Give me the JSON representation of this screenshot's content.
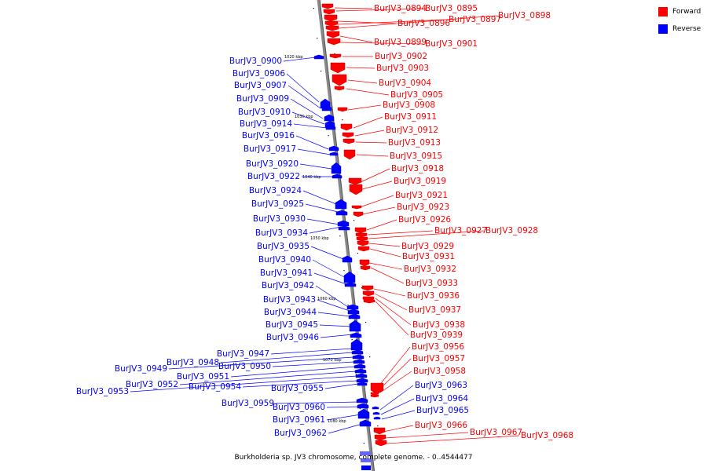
{
  "colors": {
    "forward": "#ff0000",
    "reverse": "#0000ff",
    "backbone": "#888888",
    "tick": "#000000"
  },
  "legend": [
    {
      "label": "Forward",
      "color": "#ff0000"
    },
    {
      "label": "Reverse",
      "color": "#0000ff"
    }
  ],
  "caption": "Burkholderia sp. JV3 chromosome, complete genome. - 0..4544477",
  "scale_labels": [
    "1020 kbp",
    "1030 kbp",
    "1040 kbp",
    "1050 kbp",
    "1060 kbp",
    "1070 kbp",
    "1080 kbp"
  ],
  "genes": [
    {
      "id": "BurJV3_0894",
      "strand": "forward"
    },
    {
      "id": "BurJV3_0895",
      "strand": "forward"
    },
    {
      "id": "BurJV3_0896",
      "strand": "forward"
    },
    {
      "id": "BurJV3_0897",
      "strand": "forward"
    },
    {
      "id": "BurJV3_0898",
      "strand": "forward"
    },
    {
      "id": "BurJV3_0899",
      "strand": "forward"
    },
    {
      "id": "BurJV3_0901",
      "strand": "forward"
    },
    {
      "id": "BurJV3_0902",
      "strand": "forward"
    },
    {
      "id": "BurJV3_0903",
      "strand": "forward"
    },
    {
      "id": "BurJV3_0904",
      "strand": "forward"
    },
    {
      "id": "BurJV3_0905",
      "strand": "forward"
    },
    {
      "id": "BurJV3_0908",
      "strand": "forward"
    },
    {
      "id": "BurJV3_0911",
      "strand": "forward"
    },
    {
      "id": "BurJV3_0912",
      "strand": "forward"
    },
    {
      "id": "BurJV3_0913",
      "strand": "forward"
    },
    {
      "id": "BurJV3_0915",
      "strand": "forward"
    },
    {
      "id": "BurJV3_0918",
      "strand": "forward"
    },
    {
      "id": "BurJV3_0919",
      "strand": "forward"
    },
    {
      "id": "BurJV3_0921",
      "strand": "forward"
    },
    {
      "id": "BurJV3_0923",
      "strand": "forward"
    },
    {
      "id": "BurJV3_0926",
      "strand": "forward"
    },
    {
      "id": "BurJV3_0927",
      "strand": "forward"
    },
    {
      "id": "BurJV3_0928",
      "strand": "forward"
    },
    {
      "id": "BurJV3_0929",
      "strand": "forward"
    },
    {
      "id": "BurJV3_0931",
      "strand": "forward"
    },
    {
      "id": "BurJV3_0932",
      "strand": "forward"
    },
    {
      "id": "BurJV3_0933",
      "strand": "forward"
    },
    {
      "id": "BurJV3_0936",
      "strand": "forward"
    },
    {
      "id": "BurJV3_0937",
      "strand": "forward"
    },
    {
      "id": "BurJV3_0938",
      "strand": "forward"
    },
    {
      "id": "BurJV3_0939",
      "strand": "forward"
    },
    {
      "id": "BurJV3_0956",
      "strand": "forward"
    },
    {
      "id": "BurJV3_0957",
      "strand": "forward"
    },
    {
      "id": "BurJV3_0958",
      "strand": "forward"
    },
    {
      "id": "BurJV3_0963",
      "strand": "reverse"
    },
    {
      "id": "BurJV3_0964",
      "strand": "reverse"
    },
    {
      "id": "BurJV3_0965",
      "strand": "reverse"
    },
    {
      "id": "BurJV3_0966",
      "strand": "forward"
    },
    {
      "id": "BurJV3_0967",
      "strand": "forward"
    },
    {
      "id": "BurJV3_0968",
      "strand": "forward"
    },
    {
      "id": "BurJV3_0900",
      "strand": "reverse"
    },
    {
      "id": "BurJV3_0906",
      "strand": "reverse"
    },
    {
      "id": "BurJV3_0907",
      "strand": "reverse"
    },
    {
      "id": "BurJV3_0909",
      "strand": "reverse"
    },
    {
      "id": "BurJV3_0910",
      "strand": "reverse"
    },
    {
      "id": "BurJV3_0914",
      "strand": "reverse"
    },
    {
      "id": "BurJV3_0916",
      "strand": "reverse"
    },
    {
      "id": "BurJV3_0917",
      "strand": "reverse"
    },
    {
      "id": "BurJV3_0920",
      "strand": "reverse"
    },
    {
      "id": "BurJV3_0922",
      "strand": "reverse"
    },
    {
      "id": "BurJV3_0924",
      "strand": "reverse"
    },
    {
      "id": "BurJV3_0925",
      "strand": "reverse"
    },
    {
      "id": "BurJV3_0930",
      "strand": "reverse"
    },
    {
      "id": "BurJV3_0934",
      "strand": "reverse"
    },
    {
      "id": "BurJV3_0935",
      "strand": "reverse"
    },
    {
      "id": "BurJV3_0940",
      "strand": "reverse"
    },
    {
      "id": "BurJV3_0941",
      "strand": "reverse"
    },
    {
      "id": "BurJV3_0942",
      "strand": "reverse"
    },
    {
      "id": "BurJV3_0943",
      "strand": "reverse"
    },
    {
      "id": "BurJV3_0944",
      "strand": "reverse"
    },
    {
      "id": "BurJV3_0945",
      "strand": "reverse"
    },
    {
      "id": "BurJV3_0946",
      "strand": "reverse"
    },
    {
      "id": "BurJV3_0947",
      "strand": "reverse"
    },
    {
      "id": "BurJV3_0948",
      "strand": "reverse"
    },
    {
      "id": "BurJV3_0949",
      "strand": "reverse"
    },
    {
      "id": "BurJV3_0950",
      "strand": "reverse"
    },
    {
      "id": "BurJV3_0951",
      "strand": "reverse"
    },
    {
      "id": "BurJV3_0952",
      "strand": "reverse"
    },
    {
      "id": "BurJV3_0953",
      "strand": "reverse"
    },
    {
      "id": "BurJV3_0954",
      "strand": "reverse"
    },
    {
      "id": "BurJV3_0955",
      "strand": "reverse"
    },
    {
      "id": "BurJV3_0959",
      "strand": "reverse"
    },
    {
      "id": "BurJV3_0960",
      "strand": "reverse"
    },
    {
      "id": "BurJV3_0961",
      "strand": "reverse"
    },
    {
      "id": "BurJV3_0962",
      "strand": "reverse"
    }
  ]
}
